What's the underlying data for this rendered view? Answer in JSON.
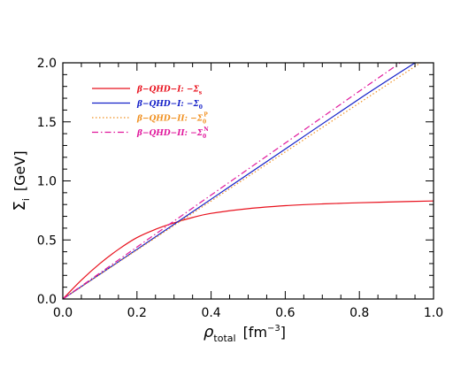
{
  "chart_data": {
    "type": "line",
    "xlabel": {
      "main": "ρ",
      "sub": "total",
      "unit_pre": "[fm",
      "unit_sup": "−3",
      "unit_post": "]"
    },
    "ylabel": {
      "main": "Σ",
      "sub": "i",
      "unit": "[GeV]"
    },
    "xlim": [
      0.0,
      1.0
    ],
    "ylim": [
      0.0,
      2.0
    ],
    "x_ticks": [
      "0.0",
      "0.2",
      "0.4",
      "0.6",
      "0.8",
      "1.0"
    ],
    "y_ticks": [
      "0.0",
      "0.5",
      "1.0",
      "1.5",
      "2.0"
    ],
    "legend_position": "top-left",
    "series": [
      {
        "name": "β−QHD−I:  −Σ",
        "name_sub": "s",
        "name_sup": "",
        "color": "#e8101c",
        "style": "solid",
        "x": [
          0.0,
          0.05,
          0.1,
          0.15,
          0.2,
          0.25,
          0.3,
          0.35,
          0.4,
          0.5,
          0.6,
          0.7,
          0.8,
          0.9,
          1.0
        ],
        "y": [
          0.0,
          0.16,
          0.3,
          0.42,
          0.52,
          0.59,
          0.645,
          0.69,
          0.725,
          0.765,
          0.79,
          0.805,
          0.815,
          0.823,
          0.83
        ]
      },
      {
        "name": "β−QHD−I:  −Σ",
        "name_sub": "0",
        "name_sup": "",
        "color": "#1420c8",
        "style": "solid",
        "x": [
          0.0,
          0.2,
          0.4,
          0.6,
          0.8,
          0.95
        ],
        "y": [
          0.0,
          0.42,
          0.845,
          1.27,
          1.695,
          2.0
        ]
      },
      {
        "name": "β−QHD−II:  −Σ",
        "name_sub": "0",
        "name_sup": "P",
        "color": "#f09020",
        "style": "dotted",
        "x": [
          0.0,
          0.2,
          0.4,
          0.6,
          0.8,
          0.965
        ],
        "y": [
          0.0,
          0.415,
          0.83,
          1.245,
          1.66,
          2.0
        ]
      },
      {
        "name": "β−QHD−II:  −Σ",
        "name_sub": "0",
        "name_sup": "N",
        "color": "#e0189c",
        "style": "dashdot",
        "x": [
          0.0,
          0.2,
          0.4,
          0.6,
          0.8,
          0.91
        ],
        "y": [
          0.0,
          0.44,
          0.88,
          1.32,
          1.76,
          2.0
        ]
      }
    ]
  }
}
